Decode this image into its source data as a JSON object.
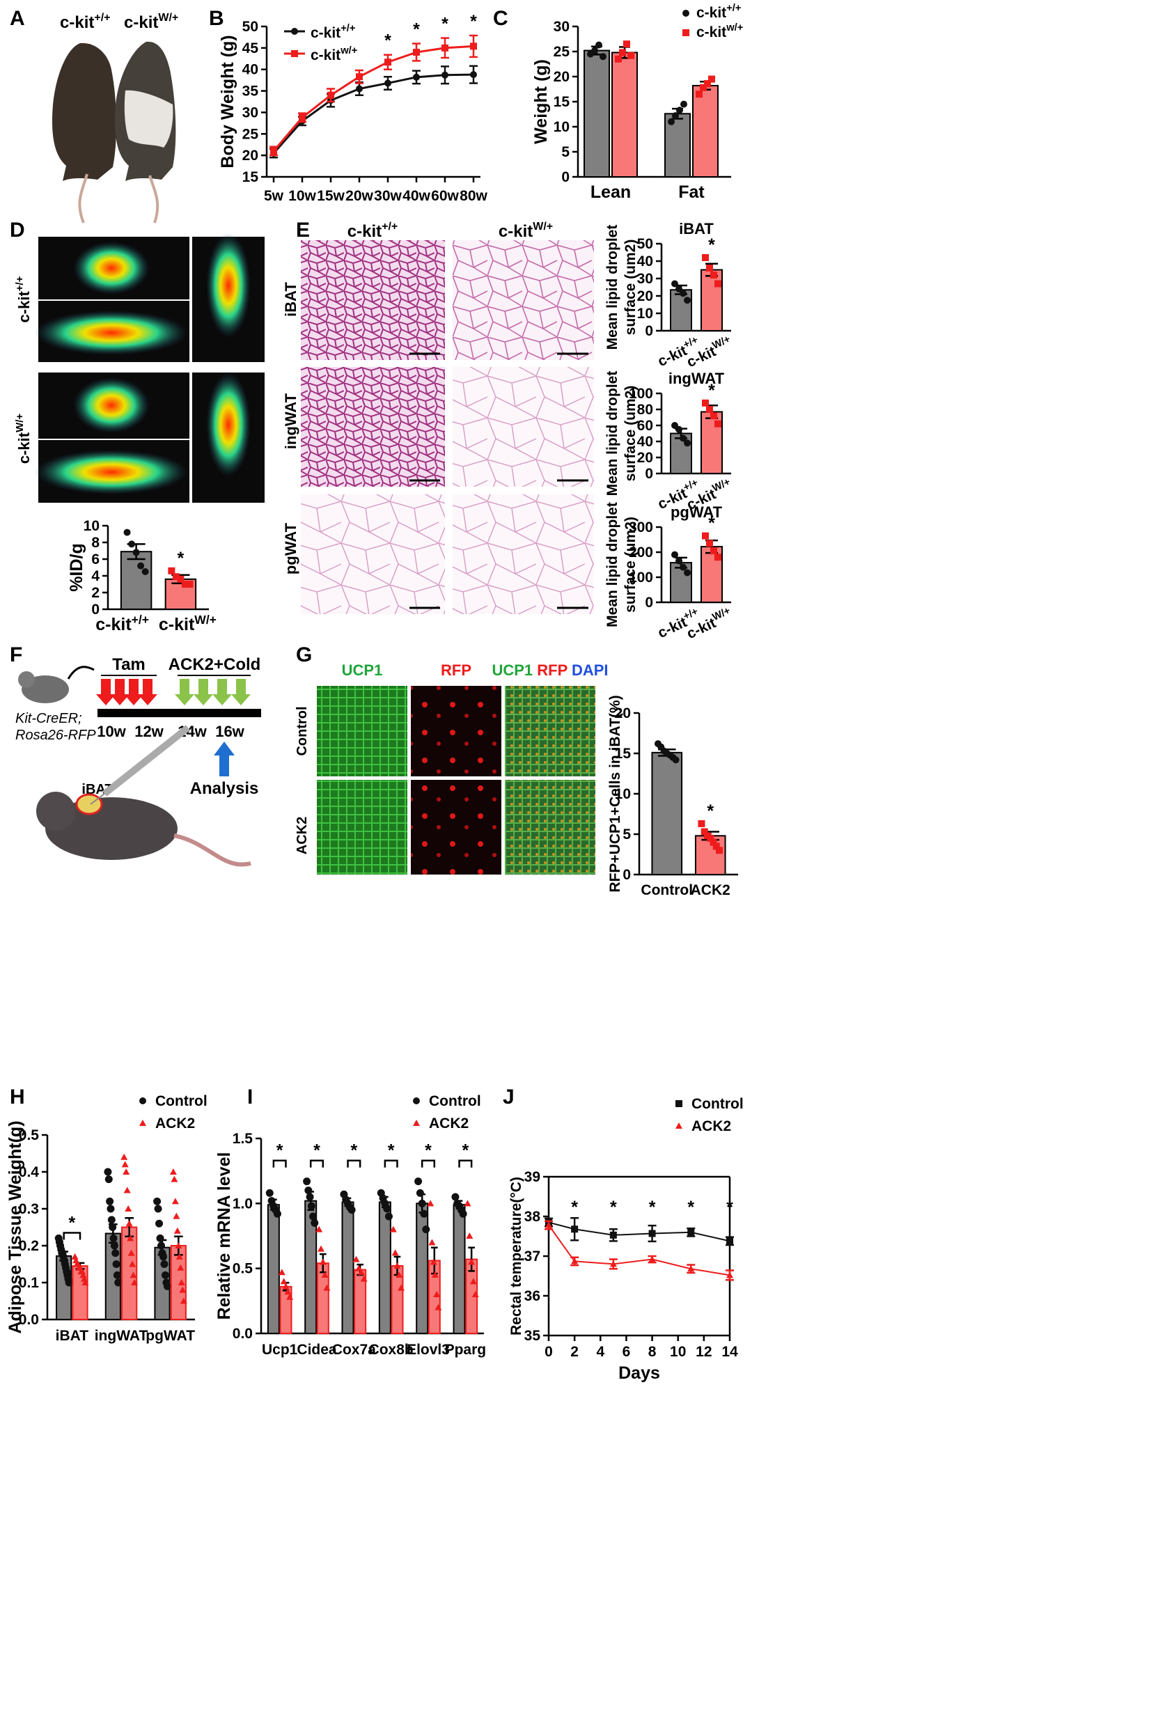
{
  "colors": {
    "ctrl_bar": "#808080",
    "mut_bar": "#f87878",
    "black": "#111111",
    "red": "#ee1c1c",
    "green": "#1fa53a",
    "blue": "#1f4fe0"
  },
  "panels": {
    "A": "A",
    "B": "B",
    "C": "C",
    "D": "D",
    "E": "E",
    "F": "F",
    "G": "G",
    "H": "H",
    "I": "I",
    "J": "J"
  },
  "panel_a": {
    "label_wt": "c-kit",
    "sup_wt": "+/+",
    "label_mut": "c-kit",
    "sup_mut": "W/+"
  },
  "panel_d_images": {
    "row_wt": "c-kit",
    "row_wt_sup": "+/+",
    "row_mut": "c-kit",
    "row_mut_sup": "W/+"
  },
  "panel_e_images": {
    "col_wt": "c-kit",
    "col_wt_sup": "+/+",
    "col_mut": "c-kit",
    "col_mut_sup": "W/+",
    "rows": [
      "iBAT",
      "ingWAT",
      "pgWAT"
    ]
  },
  "panel_f": {
    "genotype_line1": "Kit-CreER;",
    "genotype_line2": "Rosa26-RFP",
    "tam": "Tam",
    "treatment": "ACK2+Cold",
    "weeks": [
      "10w",
      "12w",
      "14w",
      "16w"
    ],
    "analysis": "Analysis",
    "tissue": "iBAT"
  },
  "panel_g_images": {
    "col1": "UCP1",
    "col2": "RFP",
    "col3_a": "UCP1",
    "col3_b": "RFP",
    "col3_c": "DAPI",
    "rows": [
      "Control",
      "ACK2"
    ]
  },
  "chart_data": [
    {
      "panel": "B",
      "type": "line",
      "ylabel": "Body Weight (g)",
      "ylim": [
        15,
        50
      ],
      "yticks": [
        15,
        20,
        25,
        30,
        35,
        40,
        45,
        50
      ],
      "categories": [
        "5w",
        "10w",
        "15w",
        "20w",
        "30w",
        "40w",
        "60w",
        "80w"
      ],
      "legend": [
        {
          "name": "c-kit",
          "sup": "+/+"
        },
        {
          "name": "c-kit",
          "sup": "w/+"
        }
      ],
      "series": [
        {
          "name": "c-kit+/+",
          "values": [
            20.5,
            28,
            32.8,
            35.5,
            36.8,
            38.2,
            38.7,
            38.8
          ],
          "err": [
            1,
            1,
            1.5,
            1.5,
            1.5,
            1.5,
            2,
            2
          ]
        },
        {
          "name": "c-kitw/+",
          "values": [
            21,
            28.8,
            34,
            38.3,
            41.7,
            44,
            45,
            45.4
          ],
          "err": [
            1,
            1,
            1.5,
            1.5,
            1.7,
            2,
            2.3,
            2.5
          ]
        }
      ],
      "significance": [
        "",
        "",
        "",
        "",
        "*",
        "*",
        "*",
        "*"
      ]
    },
    {
      "panel": "C",
      "type": "bar",
      "ylabel": "Weight (g)",
      "ylim": [
        0,
        30
      ],
      "yticks": [
        0,
        5,
        10,
        15,
        20,
        25,
        30
      ],
      "categories": [
        "Lean",
        "Fat"
      ],
      "legend": [
        {
          "name": "c-kit",
          "sup": "+/+"
        },
        {
          "name": "c-kit",
          "sup": "w/+"
        }
      ],
      "series": [
        {
          "name": "c-kit+/+",
          "values": [
            25.2,
            12.6
          ],
          "err": [
            0.8,
            1.0
          ],
          "points": [
            [
              24.5,
              25.2,
              26.3,
              24
            ],
            [
              11,
              12.2,
              13.3,
              14.5
            ]
          ]
        },
        {
          "name": "c-kitw/+",
          "values": [
            24.8,
            18.2
          ],
          "err": [
            1.1,
            0.8
          ],
          "points": [
            [
              23.5,
              24.8,
              26.5,
              24.2
            ],
            [
              16.5,
              17.8,
              18.6,
              19.5
            ]
          ]
        }
      ]
    },
    {
      "panel": "D",
      "type": "bar",
      "ylabel": "%ID/g",
      "ylim": [
        0,
        10
      ],
      "yticks": [
        0,
        2,
        4,
        6,
        8,
        10
      ],
      "categories": [
        "c-kit+/+",
        "c-kitW/+"
      ],
      "category_labels": [
        {
          "name": "c-kit",
          "sup": "+/+"
        },
        {
          "name": "c-kit",
          "sup": "W/+"
        }
      ],
      "values": [
        6.9,
        3.6
      ],
      "err": [
        0.9,
        0.5
      ],
      "points": [
        [
          9.2,
          7.8,
          6.8,
          5.2,
          4.5
        ],
        [
          4.6,
          3.9,
          3.6,
          3.0,
          3.0
        ]
      ],
      "significance": [
        "",
        "*"
      ]
    },
    {
      "panel": "E-iBAT",
      "type": "bar",
      "title": "iBAT",
      "ylabel": "Mean lipid droplet surface (um2)",
      "ylim": [
        0,
        50
      ],
      "yticks": [
        0,
        10,
        20,
        30,
        40,
        50
      ],
      "categories": [
        "c-kit+/+",
        "c-kitW/+"
      ],
      "category_labels": [
        {
          "name": "c-kit",
          "sup": "+/+"
        },
        {
          "name": "c-kit",
          "sup": "W/+"
        }
      ],
      "values": [
        23.5,
        35
      ],
      "err": [
        2.5,
        3.5
      ],
      "points": [
        [
          27,
          24,
          21.5,
          17.5
        ],
        [
          42,
          36,
          32,
          27
        ]
      ],
      "significance": [
        "",
        "*"
      ]
    },
    {
      "panel": "E-ingWAT",
      "type": "bar",
      "title": "ingWAT",
      "ylabel": "Mean lipid droplet surface (um2)",
      "ylim": [
        0,
        100
      ],
      "yticks": [
        0,
        20,
        40,
        60,
        80,
        100
      ],
      "categories": [
        "c-kit+/+",
        "c-kitW/+"
      ],
      "category_labels": [
        {
          "name": "c-kit",
          "sup": "+/+"
        },
        {
          "name": "c-kit",
          "sup": "W/+"
        }
      ],
      "values": [
        50,
        77
      ],
      "err": [
        6,
        8
      ],
      "points": [
        [
          60,
          55,
          44,
          38
        ],
        [
          88,
          80,
          72,
          62
        ]
      ],
      "significance": [
        "",
        "*"
      ]
    },
    {
      "panel": "E-pgWAT",
      "type": "bar",
      "title": "pgWAT",
      "ylabel": "Mean lipid droplet surface (um2)",
      "ylim": [
        0,
        300
      ],
      "yticks": [
        0,
        100,
        200,
        300
      ],
      "categories": [
        "c-kit+/+",
        "c-kitW/+"
      ],
      "category_labels": [
        {
          "name": "c-kit",
          "sup": "+/+"
        },
        {
          "name": "c-kit",
          "sup": "W/+"
        }
      ],
      "values": [
        158,
        222
      ],
      "err": [
        20,
        25
      ],
      "points": [
        [
          190,
          165,
          140,
          118
        ],
        [
          265,
          235,
          205,
          180
        ]
      ],
      "significance": [
        "",
        "*"
      ]
    },
    {
      "panel": "G",
      "type": "bar",
      "ylabel": "RFP+UCP1+Cells in iBAT(%)",
      "ylim": [
        0,
        20
      ],
      "yticks": [
        0,
        5,
        10,
        15,
        20
      ],
      "categories": [
        "Control",
        "ACK2"
      ],
      "values": [
        15.1,
        4.8
      ],
      "err": [
        0.4,
        0.5
      ],
      "points": [
        [
          16.2,
          15.8,
          15.3,
          15.0,
          14.8,
          14.5,
          14.2
        ],
        [
          6.3,
          5.3,
          4.8,
          4.5,
          4.0,
          3.5,
          3.0
        ]
      ],
      "significance": [
        "",
        "*"
      ]
    },
    {
      "panel": "H",
      "type": "bar",
      "ylabel": "Adipose Tissue Weight(g)",
      "ylim": [
        0,
        0.5
      ],
      "yticks": [
        0.0,
        0.1,
        0.2,
        0.3,
        0.4,
        0.5
      ],
      "categories": [
        "iBAT",
        "ingWAT",
        "pgWAT"
      ],
      "legend": [
        "Control",
        "ACK2"
      ],
      "series": [
        {
          "name": "Control",
          "values": [
            0.172,
            0.233,
            0.195
          ],
          "err": [
            0.012,
            0.025,
            0.02
          ],
          "points": [
            [
              0.22,
              0.21,
              0.2,
              0.19,
              0.18,
              0.18,
              0.17,
              0.16,
              0.15,
              0.14,
              0.13,
              0.12,
              0.11,
              0.1
            ],
            [
              0.4,
              0.38,
              0.32,
              0.3,
              0.27,
              0.25,
              0.22,
              0.2,
              0.18,
              0.15,
              0.12,
              0.1
            ],
            [
              0.32,
              0.3,
              0.26,
              0.22,
              0.2,
              0.18,
              0.17,
              0.15,
              0.12,
              0.1,
              0.09
            ]
          ]
        },
        {
          "name": "ACK2",
          "values": [
            0.145,
            0.25,
            0.2
          ],
          "err": [
            0.008,
            0.025,
            0.025
          ],
          "points": [
            [
              0.17,
              0.16,
              0.15,
              0.15,
              0.14,
              0.14,
              0.13,
              0.13,
              0.12,
              0.11,
              0.1
            ],
            [
              0.44,
              0.42,
              0.4,
              0.35,
              0.3,
              0.26,
              0.22,
              0.18,
              0.15,
              0.12,
              0.1
            ],
            [
              0.4,
              0.38,
              0.32,
              0.28,
              0.24,
              0.2,
              0.17,
              0.14,
              0.1,
              0.08,
              0.05
            ]
          ]
        }
      ],
      "significance": [
        "*",
        "",
        ""
      ]
    },
    {
      "panel": "I",
      "type": "bar",
      "ylabel": "Relative mRNA level",
      "ylim": [
        0,
        1.5
      ],
      "yticks": [
        0.0,
        0.5,
        1.0,
        1.5
      ],
      "categories": [
        "Ucp1",
        "Cidea",
        "Cox7a",
        "Cox8b",
        "Elovl3",
        "Pparg"
      ],
      "legend": [
        "Control",
        "ACK2"
      ],
      "series": [
        {
          "name": "Control",
          "values": [
            0.99,
            1.02,
            1.01,
            1.01,
            1.0,
            0.99
          ],
          "err": [
            0.04,
            0.07,
            0.03,
            0.04,
            0.07,
            0.03
          ],
          "points": [
            [
              1.08,
              1.02,
              0.98,
              0.95,
              0.92
            ],
            [
              1.17,
              1.1,
              1.05,
              0.98,
              0.9,
              0.85
            ],
            [
              1.07,
              1.03,
              1.0,
              0.97,
              0.95
            ],
            [
              1.08,
              1.04,
              1.0,
              0.96,
              0.9
            ],
            [
              1.17,
              1.08,
              1.0,
              0.92,
              0.8
            ],
            [
              1.05,
              1.0,
              0.98,
              0.95,
              0.92
            ]
          ]
        },
        {
          "name": "ACK2",
          "values": [
            0.36,
            0.54,
            0.49,
            0.52,
            0.56,
            0.57
          ],
          "err": [
            0.03,
            0.07,
            0.04,
            0.07,
            0.1,
            0.09
          ],
          "points": [
            [
              0.47,
              0.4,
              0.36,
              0.32,
              0.28
            ],
            [
              0.8,
              0.65,
              0.55,
              0.45,
              0.35
            ],
            [
              0.57,
              0.5,
              0.47,
              0.42
            ],
            [
              0.8,
              0.62,
              0.52,
              0.45,
              0.35
            ],
            [
              1.0,
              0.7,
              0.55,
              0.45,
              0.3,
              0.2
            ],
            [
              1.0,
              0.75,
              0.55,
              0.4,
              0.3
            ]
          ]
        }
      ],
      "significance": [
        "*",
        "*",
        "*",
        "*",
        "*",
        "*"
      ]
    },
    {
      "panel": "J",
      "type": "line",
      "xlabel": "Days",
      "ylabel": "Rectal temperature(°C)",
      "ylim": [
        35,
        39
      ],
      "yticks": [
        35,
        36,
        37,
        38,
        39
      ],
      "xlim": [
        0,
        14
      ],
      "xticks": [
        0,
        2,
        4,
        6,
        8,
        10,
        12,
        14
      ],
      "legend": [
        "Control",
        "ACK2"
      ],
      "series": [
        {
          "name": "Control",
          "x": [
            0,
            2,
            5,
            8,
            11,
            14
          ],
          "y": [
            37.85,
            37.68,
            37.53,
            37.57,
            37.6,
            37.38
          ],
          "err": [
            0.1,
            0.28,
            0.15,
            0.2,
            0.1,
            0.1
          ]
        },
        {
          "name": "ACK2",
          "x": [
            0,
            2,
            5,
            8,
            11,
            14
          ],
          "y": [
            37.78,
            36.87,
            36.8,
            36.92,
            36.68,
            36.52
          ],
          "err": [
            0.1,
            0.1,
            0.12,
            0.08,
            0.1,
            0.12
          ]
        }
      ],
      "significance_x": [
        2,
        5,
        8,
        11,
        14
      ],
      "significance": "*"
    }
  ]
}
